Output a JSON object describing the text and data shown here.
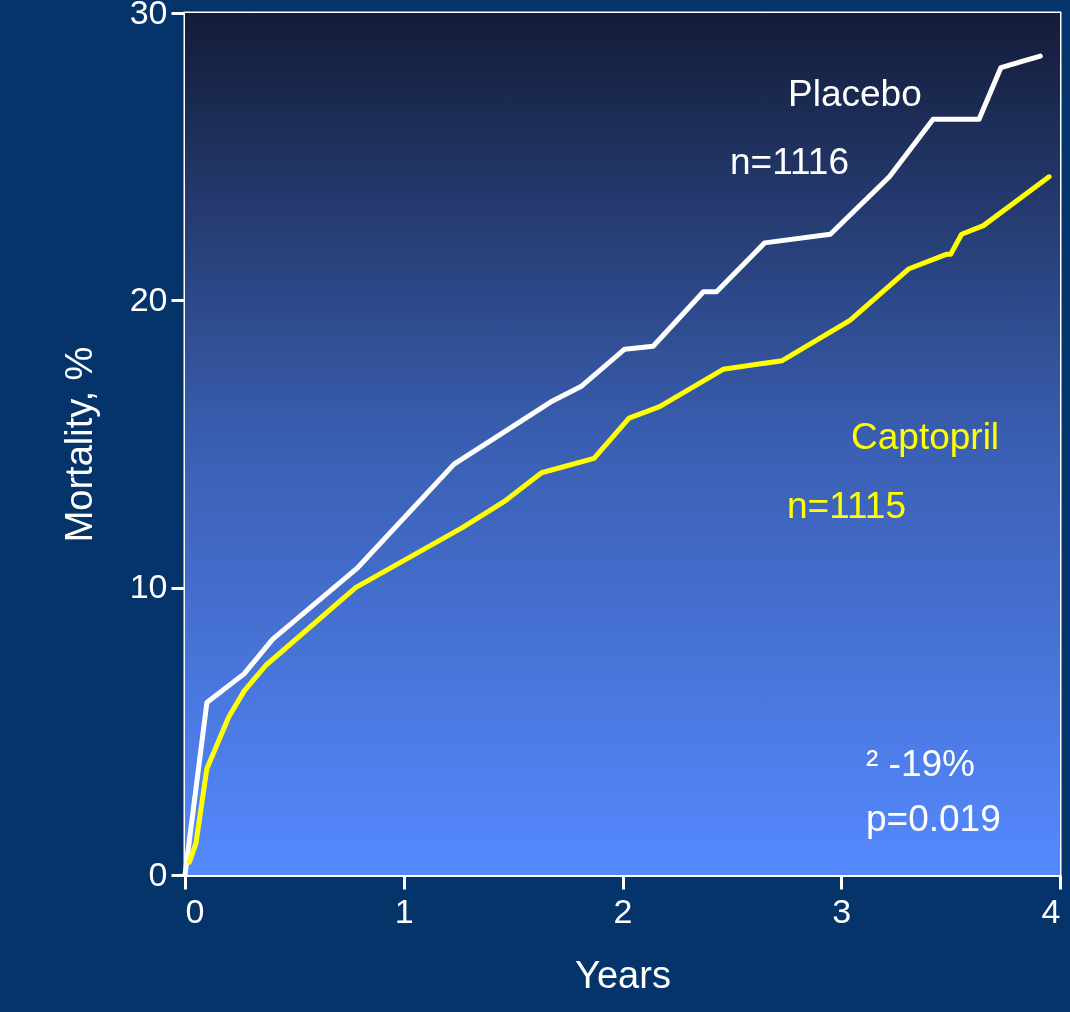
{
  "chart_data": {
    "type": "line",
    "xlabel": "Years",
    "ylabel": "Mortality, %",
    "xlim": [
      0,
      4
    ],
    "ylim": [
      0,
      30
    ],
    "xticks": [
      0,
      1,
      2,
      3,
      4
    ],
    "yticks": [
      0,
      10,
      20,
      30
    ],
    "line_style": "solid",
    "series": [
      {
        "name": "Placebo",
        "color": "#ffffff",
        "x": [
          0,
          0.1,
          0.27,
          0.4,
          0.79,
          1.23,
          1.68,
          1.81,
          2.01,
          2.14,
          2.37,
          2.43,
          2.65,
          2.95,
          3.22,
          3.42,
          3.63,
          3.73,
          3.91
        ],
        "values": [
          0,
          6.0,
          7.0,
          8.2,
          10.7,
          14.3,
          16.5,
          17.0,
          18.3,
          18.4,
          20.3,
          20.3,
          22.0,
          22.3,
          24.3,
          26.3,
          26.3,
          28.1,
          28.5
        ]
      },
      {
        "name": "Captopril",
        "color": "#ffff00",
        "x": [
          0.02,
          0.05,
          0.1,
          0.2,
          0.27,
          0.37,
          0.78,
          1.27,
          1.46,
          1.63,
          1.87,
          2.03,
          2.17,
          2.46,
          2.73,
          3.04,
          3.31,
          3.48,
          3.5,
          3.55,
          3.65,
          3.95
        ],
        "values": [
          0.45,
          1.1,
          3.7,
          5.5,
          6.4,
          7.3,
          10.0,
          12.1,
          13.0,
          14.0,
          14.5,
          15.9,
          16.3,
          17.6,
          17.9,
          19.3,
          21.1,
          21.6,
          21.6,
          22.3,
          22.6,
          24.3
        ]
      }
    ],
    "annotations": [
      "n=1116",
      "n=1115",
      "² -19%",
      "p=0.019"
    ]
  }
}
